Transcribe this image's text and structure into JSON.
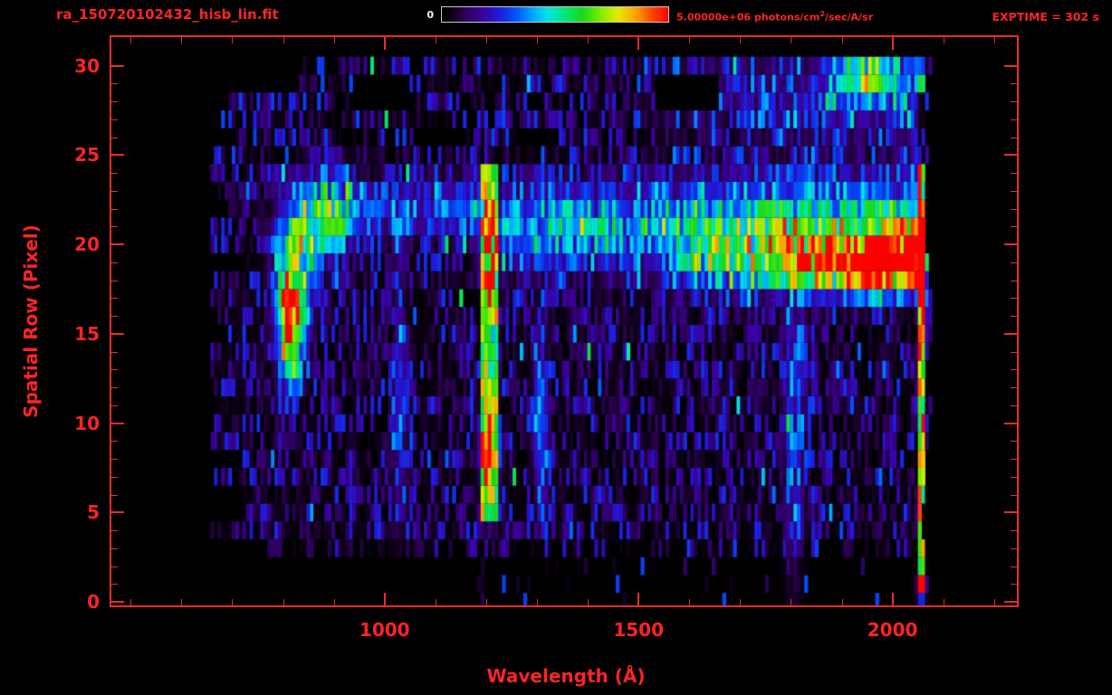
{
  "header": {
    "title": "ra_150720102432_hisb_lin.fit",
    "colorbar": {
      "min_label": "0",
      "max_label_prefix": "5.00000e+06 photons/cm",
      "max_label_sup": "2",
      "max_label_suffix": "/sec/A/sr"
    },
    "exptime": "EXPTIME = 302 s"
  },
  "colors": {
    "accent": "#ff2424",
    "axis": "#e92c2c",
    "background": "#000000",
    "colorbar_border": "#c8c8c8",
    "white_label": "#f2f2f2"
  },
  "chart_data": {
    "type": "heatmap",
    "title": "ra_150720102432_hisb_lin.fit",
    "xlabel": "Wavelength (Å)",
    "ylabel": "Spatial Row (Pixel)",
    "xlim": [
      462,
      2245
    ],
    "ylim": [
      -0.2,
      31.6
    ],
    "xticks": [
      1000,
      1500,
      2000
    ],
    "xminor_step": 100,
    "yticks": [
      0,
      5,
      10,
      15,
      20,
      25,
      30
    ],
    "yminor_step": 1,
    "colorbar": {
      "min": 0,
      "max": 5000000,
      "units": "photons/cm^2/sec/A/sr"
    },
    "exptime_s": 302,
    "legend": "none",
    "grid": false,
    "data_extent": {
      "wl": [
        650,
        2072
      ],
      "rows": [
        0,
        30
      ]
    },
    "colormap": [
      [
        0.0,
        "#000000"
      ],
      [
        0.04,
        "#0d0016"
      ],
      [
        0.1,
        "#2a0050"
      ],
      [
        0.18,
        "#3c00a0"
      ],
      [
        0.26,
        "#1b20e0"
      ],
      [
        0.33,
        "#0055ff"
      ],
      [
        0.4,
        "#00a4ff"
      ],
      [
        0.47,
        "#00e4e4"
      ],
      [
        0.54,
        "#00e87a"
      ],
      [
        0.62,
        "#18d818"
      ],
      [
        0.7,
        "#7bee00"
      ],
      [
        0.78,
        "#e8e800"
      ],
      [
        0.86,
        "#ff9d00"
      ],
      [
        0.93,
        "#ff4400"
      ],
      [
        1.0,
        "#ff0000"
      ]
    ],
    "noise": {
      "row_base": [
        {
          "rows": [
            0,
            2
          ],
          "base": 0.05,
          "empty_prob": 0.93
        },
        {
          "rows": [
            3,
            3
          ],
          "base": 0.08,
          "empty_prob": 0.55
        },
        {
          "rows": [
            4,
            24
          ],
          "base": 0.1,
          "empty_prob": 0.15
        },
        {
          "rows": [
            25,
            30
          ],
          "base": 0.11,
          "empty_prob": 0.28
        }
      ],
      "speck_boost_prob": 0.988,
      "speck_boost": 0.3
    },
    "features": [
      {
        "name": "arc-top",
        "shape": "gauss",
        "wl_c": 872,
        "wl_w": 40,
        "r_c": 21.6,
        "r_w": 1.5,
        "amp": 0.5
      },
      {
        "name": "arc-mid",
        "shape": "gauss",
        "wl_c": 822,
        "wl_w": 24,
        "r_c": 18.5,
        "r_w": 2.0,
        "amp": 0.55
      },
      {
        "name": "arc-low",
        "shape": "gauss",
        "wl_c": 812,
        "wl_w": 19,
        "r_c": 15.6,
        "r_w": 1.9,
        "amp": 0.6
      },
      {
        "name": "arc-tail",
        "shape": "gauss",
        "wl_c": 818,
        "wl_w": 15,
        "r_c": 13.4,
        "r_w": 1.2,
        "amp": 0.3
      },
      {
        "name": "lya-column",
        "shape": "rect",
        "wl0": 1189,
        "wl1": 1227,
        "r0": 5,
        "r1": 24,
        "amp": 0.5
      },
      {
        "name": "lya-hot-lower",
        "shape": "gauss",
        "wl_c": 1207,
        "wl_w": 13,
        "r_c": 8.4,
        "r_w": 1.9,
        "amp": 0.42
      },
      {
        "name": "lya-hot-upper",
        "shape": "gauss",
        "wl_c": 1207,
        "wl_w": 13,
        "r_c": 20.0,
        "r_w": 2.3,
        "amp": 0.4
      },
      {
        "name": "col-1030",
        "shape": "gauss",
        "wl_c": 1030,
        "wl_w": 11,
        "r_c": 11.5,
        "r_w": 5.0,
        "amp": 0.2
      },
      {
        "name": "col-1310",
        "shape": "gauss",
        "wl_c": 1308,
        "wl_w": 11,
        "r_c": 10.5,
        "r_w": 3.2,
        "amp": 0.3
      },
      {
        "name": "col-1800",
        "shape": "gauss",
        "wl_c": 1806,
        "wl_w": 14,
        "r_c": 10.0,
        "r_w": 6.0,
        "amp": 0.22
      },
      {
        "name": "bridge-row22",
        "shape": "ramp",
        "wl0": 880,
        "wl1": 1190,
        "amp0": 0.16,
        "amp1": 0.22,
        "r_c": 21.9,
        "r_w": 1.2
      },
      {
        "name": "band-row21",
        "shape": "ramp",
        "wl0": 1230,
        "wl1": 2058,
        "amp0": 0.26,
        "amp1": 0.5,
        "r_c": 21.0,
        "r_w": 1.7
      },
      {
        "name": "band-row19",
        "shape": "ramp",
        "wl0": 1560,
        "wl1": 2055,
        "amp0": 0.15,
        "amp1": 0.85,
        "r_c": 19.0,
        "r_w": 1.1
      },
      {
        "name": "blob-1960-r18",
        "shape": "gauss",
        "wl_c": 1965,
        "wl_w": 70,
        "r_c": 18.6,
        "r_w": 0.9,
        "amp": 0.35
      },
      {
        "name": "edge-column",
        "shape": "rect",
        "wl0": 2049,
        "wl1": 2066,
        "r0": 0.5,
        "r1": 24,
        "amp": 0.68
      },
      {
        "name": "edge-hot-r17",
        "shape": "gauss",
        "wl_c": 2057,
        "wl_w": 7,
        "r_c": 17.6,
        "r_w": 0.8,
        "amp": 0.5
      },
      {
        "name": "edge-bottom-dot",
        "shape": "gauss",
        "wl_c": 2058,
        "wl_w": 6,
        "r_c": 0.8,
        "r_w": 0.7,
        "amp": 0.5
      },
      {
        "name": "topright-speckle",
        "shape": "ramp",
        "wl0": 1500,
        "wl1": 2050,
        "amp0": 0.05,
        "amp1": 0.22,
        "r_c": 28.5,
        "r_w": 2.2
      },
      {
        "name": "topright-green",
        "shape": "gauss",
        "wl_c": 1950,
        "wl_w": 38,
        "r_c": 29.4,
        "r_w": 0.8,
        "amp": 0.45
      },
      {
        "name": "topright-red-dot",
        "shape": "gauss",
        "wl_c": 2057,
        "wl_w": 6,
        "r_c": 29.3,
        "r_w": 0.5,
        "amp": 0.8
      }
    ],
    "black_patches": [
      [
        649,
        1165,
        -0.5,
        2.6
      ],
      [
        649,
        830,
        28.6,
        30.7
      ],
      [
        935,
        1048,
        27.4,
        29.1
      ],
      [
        1528,
        1655,
        27.9,
        29.6
      ],
      [
        1052,
        1160,
        25.2,
        26.4
      ],
      [
        1265,
        1340,
        25.1,
        26.2
      ]
    ]
  }
}
